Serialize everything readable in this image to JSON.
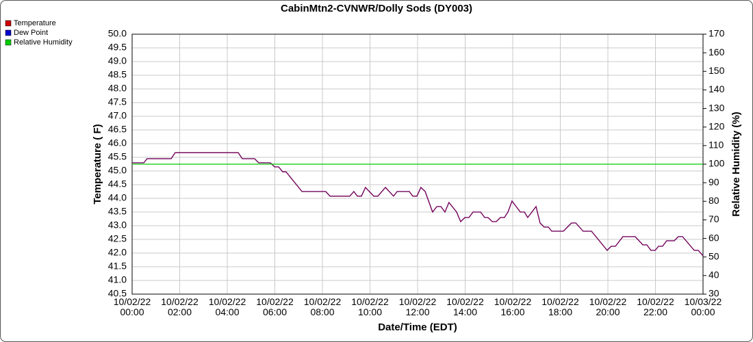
{
  "chart_data": {
    "type": "line",
    "title": "CabinMtn2-CVNWR/Dolly Sods (DY003)",
    "xlabel": "Date/Time (EDT)",
    "ylabel": "Temperature ( F)",
    "y2label": "Relative Humidity (%)",
    "grid": true,
    "legend": "top-left",
    "xlim": [
      0,
      24
    ],
    "xticks": [
      {
        "value": 0,
        "label": "10/02/22 00:00"
      },
      {
        "value": 2,
        "label": "10/02/22 02:00"
      },
      {
        "value": 4,
        "label": "10/02/22 04:00"
      },
      {
        "value": 6,
        "label": "10/02/22 06:00"
      },
      {
        "value": 8,
        "label": "10/02/22 08:00"
      },
      {
        "value": 10,
        "label": "10/02/22 10:00"
      },
      {
        "value": 12,
        "label": "10/02/22 12:00"
      },
      {
        "value": 14,
        "label": "10/02/22 14:00"
      },
      {
        "value": 16,
        "label": "10/02/22 16:00"
      },
      {
        "value": 18,
        "label": "10/02/22 18:00"
      },
      {
        "value": 20,
        "label": "10/02/22 20:00"
      },
      {
        "value": 22,
        "label": "10/02/22 22:00"
      },
      {
        "value": 24,
        "label": "10/03/22 00:00"
      }
    ],
    "ylim": [
      40.5,
      50.0
    ],
    "yticks": [
      40.5,
      {
        "value": 41,
        "label": "41.0"
      },
      41.5,
      {
        "value": 42,
        "label": "42.0"
      },
      42.5,
      {
        "value": 43,
        "label": "43.0"
      },
      43.5,
      {
        "value": 44,
        "label": "44.0"
      },
      44.5,
      {
        "value": 45,
        "label": "45.0"
      },
      45.5,
      {
        "value": 46,
        "label": "46.0"
      },
      46.5,
      {
        "value": 47,
        "label": "47.0"
      },
      47.5,
      {
        "value": 48,
        "label": "48.0"
      },
      48.5,
      {
        "value": 49,
        "label": "49.0"
      },
      49.5,
      {
        "value": 50,
        "label": "50.0"
      }
    ],
    "y2lim": [
      30,
      170
    ],
    "y2ticks": [
      30,
      40,
      50,
      60,
      70,
      80,
      90,
      100,
      110,
      120,
      130,
      140,
      150,
      160,
      170
    ],
    "series": [
      {
        "name": "Temperature",
        "color": "#cc0000",
        "x": [
          0,
          0.49,
          0.63,
          1.64,
          1.81,
          4.46,
          4.63,
          5.15,
          5.32,
          5.81,
          5.99,
          6.16,
          6.33,
          6.47,
          7.14,
          8.14,
          8.32,
          9.15,
          9.32,
          9.47,
          9.64,
          9.81,
          10.16,
          10.33,
          10.65,
          10.99,
          11.14,
          11.65,
          11.8,
          11.97,
          12.14,
          12.32,
          12.63,
          12.81,
          12.98,
          13.15,
          13.32,
          13.64,
          13.81,
          13.99,
          14.16,
          14.33,
          14.65,
          14.82,
          14.96,
          15.14,
          15.31,
          15.48,
          15.65,
          15.8,
          15.97,
          16.32,
          16.49,
          16.63,
          16.98,
          17.15,
          17.32,
          17.5,
          17.64,
          18.13,
          18.3,
          18.47,
          18.65,
          18.96,
          19.31,
          19.97,
          20.14,
          20.32,
          20.63,
          21.15,
          21.47,
          21.64,
          21.81,
          21.99,
          22.13,
          22.3,
          22.47,
          22.79,
          22.96,
          23.14,
          23.63,
          23.8,
          24
        ],
        "values": [
          45.3,
          45.3,
          45.45,
          45.45,
          45.67,
          45.67,
          45.45,
          45.45,
          45.3,
          45.3,
          45.15,
          45.15,
          44.97,
          44.97,
          44.25,
          44.25,
          44.08,
          44.08,
          44.25,
          44.08,
          44.08,
          44.4,
          44.08,
          44.08,
          44.4,
          44.08,
          44.25,
          44.25,
          44.08,
          44.08,
          44.4,
          44.25,
          43.5,
          43.7,
          43.7,
          43.5,
          43.85,
          43.5,
          43.15,
          43.3,
          43.3,
          43.5,
          43.5,
          43.3,
          43.3,
          43.15,
          43.15,
          43.3,
          43.3,
          43.5,
          43.9,
          43.5,
          43.5,
          43.3,
          43.7,
          43.1,
          42.95,
          42.95,
          42.8,
          42.8,
          42.95,
          43.1,
          43.1,
          42.8,
          42.8,
          42.1,
          42.25,
          42.25,
          42.6,
          42.6,
          42.3,
          42.3,
          42.1,
          42.1,
          42.25,
          42.25,
          42.45,
          42.45,
          42.6,
          42.6,
          42.1,
          42.1,
          41.9
        ]
      },
      {
        "name": "Dew Point",
        "color": "#0000cc",
        "x": [
          0,
          0.49,
          0.63,
          1.64,
          1.81,
          4.46,
          4.63,
          5.15,
          5.32,
          5.81,
          5.99,
          6.16,
          6.33,
          6.47,
          7.14,
          8.14,
          8.32,
          9.15,
          9.32,
          9.47,
          9.64,
          9.81,
          10.16,
          10.33,
          10.65,
          10.99,
          11.14,
          11.65,
          11.8,
          11.97,
          12.14,
          12.32,
          12.63,
          12.81,
          12.98,
          13.15,
          13.32,
          13.64,
          13.81,
          13.99,
          14.16,
          14.33,
          14.65,
          14.82,
          14.96,
          15.14,
          15.31,
          15.48,
          15.65,
          15.8,
          15.97,
          16.32,
          16.49,
          16.63,
          16.98,
          17.15,
          17.32,
          17.5,
          17.64,
          18.13,
          18.3,
          18.47,
          18.65,
          18.96,
          19.31,
          19.97,
          20.14,
          20.32,
          20.63,
          21.15,
          21.47,
          21.64,
          21.81,
          21.99,
          22.13,
          22.3,
          22.47,
          22.79,
          22.96,
          23.14,
          23.63,
          23.8,
          24
        ],
        "values": [
          45.3,
          45.3,
          45.45,
          45.45,
          45.67,
          45.67,
          45.45,
          45.45,
          45.3,
          45.3,
          45.15,
          45.15,
          44.97,
          44.97,
          44.25,
          44.25,
          44.08,
          44.08,
          44.25,
          44.08,
          44.08,
          44.4,
          44.08,
          44.08,
          44.4,
          44.08,
          44.25,
          44.25,
          44.08,
          44.08,
          44.4,
          44.25,
          43.5,
          43.7,
          43.7,
          43.5,
          43.85,
          43.5,
          43.15,
          43.3,
          43.3,
          43.5,
          43.5,
          43.3,
          43.3,
          43.15,
          43.15,
          43.3,
          43.3,
          43.5,
          43.9,
          43.5,
          43.5,
          43.3,
          43.7,
          43.1,
          42.95,
          42.95,
          42.8,
          42.8,
          42.95,
          43.1,
          43.1,
          42.8,
          42.8,
          42.1,
          42.25,
          42.25,
          42.6,
          42.6,
          42.3,
          42.3,
          42.1,
          42.1,
          42.25,
          42.25,
          42.45,
          42.45,
          42.6,
          42.6,
          42.1,
          42.1,
          41.9
        ]
      },
      {
        "name": "Relative Humidity",
        "color": "#00cc00",
        "axis": "y2",
        "x": [
          0,
          24
        ],
        "values": [
          100,
          100
        ]
      }
    ]
  }
}
